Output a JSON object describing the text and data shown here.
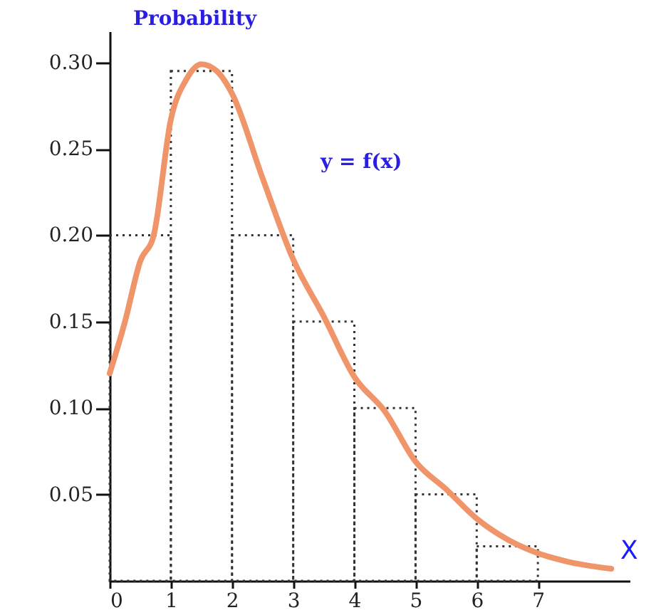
{
  "chart_data": {
    "type": "line",
    "ylabel": "Probability",
    "xlabel": "X",
    "xlim": [
      0,
      8.5
    ],
    "ylim": [
      0,
      0.318
    ],
    "xticks": [
      0,
      1,
      2,
      3,
      4,
      5,
      6,
      7
    ],
    "yticks": [
      {
        "value": 0.05,
        "label": "0.05"
      },
      {
        "value": 0.1,
        "label": "0.10"
      },
      {
        "value": 0.15,
        "label": "0.15"
      },
      {
        "value": 0.2,
        "label": "0.20"
      },
      {
        "value": 0.25,
        "label": "0.25"
      },
      {
        "value": 0.3,
        "label": "0.30"
      }
    ],
    "marker": "none",
    "annotations": [
      "y = f(x)"
    ],
    "series": [
      {
        "type": "histogram",
        "color": "#333333",
        "line_style": "dotted",
        "bins": [
          0,
          1,
          2,
          3,
          4,
          5,
          6,
          7
        ],
        "values": [
          0.2,
          0.295,
          0.2,
          0.15,
          0.1,
          0.05,
          0.02
        ]
      },
      {
        "color": "#f0956a",
        "line_style": "solid",
        "x": [
          0,
          0.25,
          0.5,
          0.72,
          1,
          1.25,
          1.5,
          1.75,
          2,
          2.5,
          3,
          3.5,
          4,
          4.5,
          5,
          5.5,
          6,
          6.5,
          7,
          7.5,
          8.2
        ],
        "values": [
          0.12,
          0.15,
          0.185,
          0.2,
          0.267,
          0.29,
          0.299,
          0.295,
          0.282,
          0.233,
          0.186,
          0.153,
          0.118,
          0.098,
          0.069,
          0.053,
          0.036,
          0.024,
          0.016,
          0.011,
          0.007
        ]
      }
    ]
  }
}
